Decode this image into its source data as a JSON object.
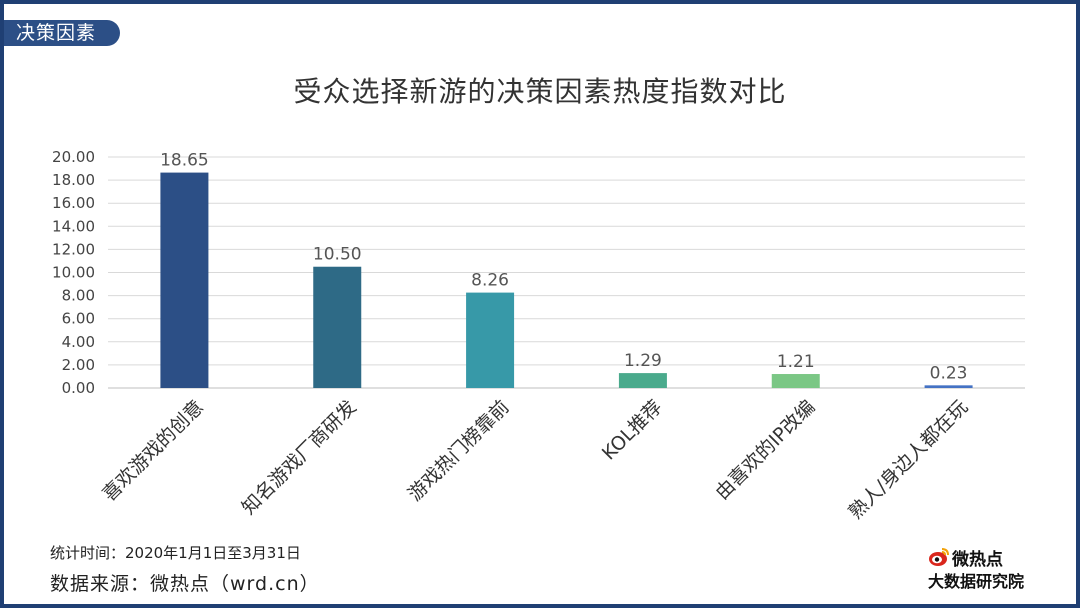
{
  "tag_label": "决策因素",
  "chart_data": {
    "type": "bar",
    "title": "受众选择新游的决策因素热度指数对比",
    "categories": [
      "喜欢游戏的创意",
      "知名游戏厂商研发",
      "游戏热门榜靠前",
      "KOL推荐",
      "由喜欢的IP改编",
      "熟人/身边人都在玩"
    ],
    "values": [
      18.65,
      10.5,
      8.26,
      1.29,
      1.21,
      0.23
    ],
    "value_labels": [
      "18.65",
      "10.50",
      "8.26",
      "1.29",
      "1.21",
      "0.23"
    ],
    "bar_colors": [
      "#2c4f86",
      "#2e6a86",
      "#3799a8",
      "#4aaa8c",
      "#7bc785",
      "#4472c4"
    ],
    "ylim": [
      0,
      20
    ],
    "yticks": [
      "0.00",
      "2.00",
      "4.00",
      "6.00",
      "8.00",
      "10.00",
      "12.00",
      "14.00",
      "16.00",
      "18.00",
      "20.00"
    ],
    "grid": true,
    "xlabel": "",
    "ylabel": ""
  },
  "footer": {
    "stat_period": "统计时间：2020年1月1日至3月31日",
    "source": "数据来源：微热点（wrd.cn）"
  },
  "logo": {
    "name": "微热点",
    "subtitle": "大数据研究院"
  },
  "colors": {
    "frame": "#1f3f73",
    "tag": "#2c4f86"
  }
}
